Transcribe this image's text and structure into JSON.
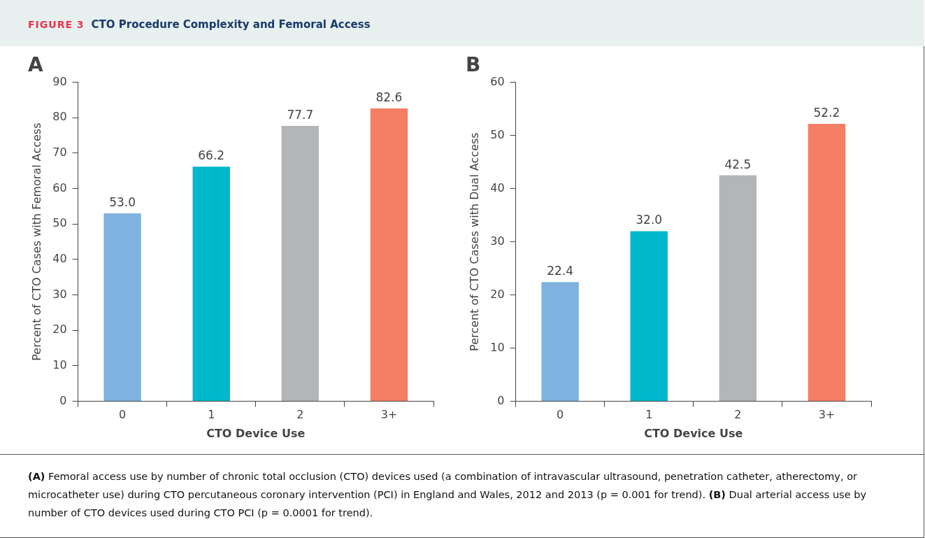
{
  "chart_data": [
    {
      "type": "bar",
      "title": "A",
      "xlabel": "CTO Device Use",
      "ylabel": "Percent of CTO Cases with Femoral Access",
      "categories": [
        "0",
        "1",
        "2",
        "3+"
      ],
      "values": [
        53.0,
        66.2,
        77.7,
        82.6
      ],
      "colors": [
        "#7fb2e0",
        "#00b8cc",
        "#b4b5b9",
        "#f47f64"
      ],
      "value_labels": [
        "53.0",
        "66.2",
        "77.7",
        "82.6"
      ],
      "ylim": [
        0,
        90
      ],
      "yticks": [
        0,
        10,
        20,
        30,
        40,
        50,
        60,
        70,
        80,
        90
      ],
      "grid": false,
      "legend": false
    },
    {
      "type": "bar",
      "title": "B",
      "xlabel": "CTO Device Use",
      "ylabel": "Percent of CTO Cases with Dual Access",
      "categories": [
        "0",
        "1",
        "2",
        "3+"
      ],
      "values": [
        22.4,
        32.0,
        42.5,
        52.2
      ],
      "colors": [
        "#7fb2e0",
        "#00b8cc",
        "#b4b5b9",
        "#f47f64"
      ],
      "value_labels": [
        "22.4",
        "32.0",
        "42.5",
        "52.2"
      ],
      "ylim": [
        0,
        60
      ],
      "yticks": [
        0,
        10,
        20,
        30,
        40,
        50,
        60
      ],
      "grid": false,
      "legend": false
    },
    {
      "type": "other",
      "subtitle": "FIGURE 3",
      "title": "CTO Procedure Complexity and Femoral Access",
      "annotations": [
        "(A) Femoral access use by number of chronic total occlusion (CTO) devices used (a combination of intravascular ultrasound, penetration catheter, atherectomy, or microcatheter use) during CTO percutaneous coronary intervention (PCI) in England and Wales, 2012 and 2013 (p = 0.001 for trend).",
        "(B) Dual arterial access use by number of CTO devices used during CTO PCI (p = 0.0001 for trend)."
      ]
    }
  ]
}
